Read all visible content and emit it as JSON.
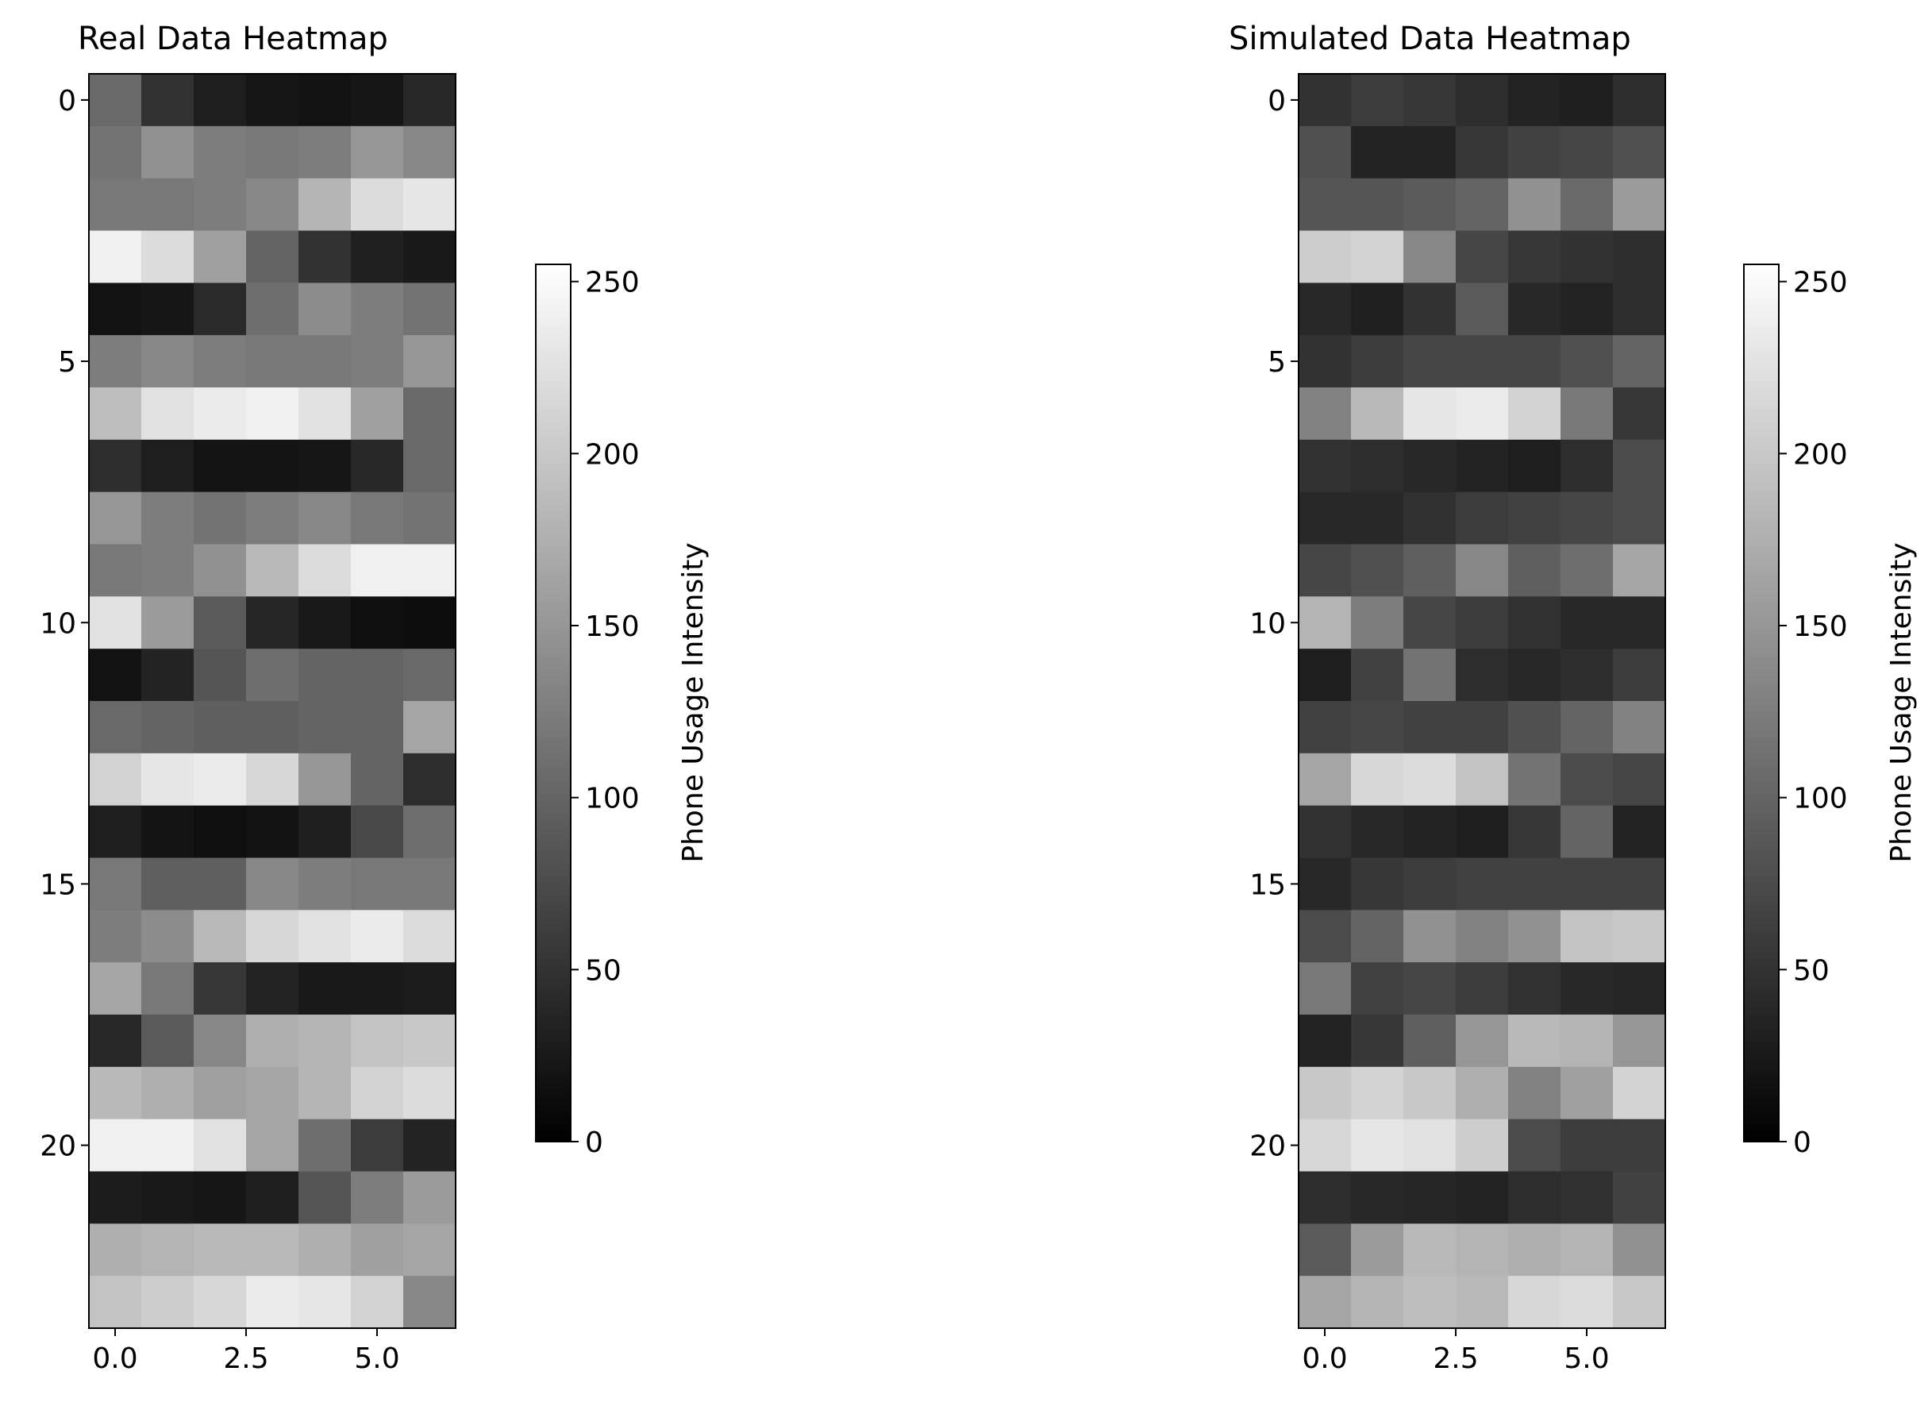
{
  "chart_data": [
    {
      "type": "heatmap",
      "title": "Real Data Heatmap",
      "colormap": "gray",
      "x_ticks": [
        "0.0",
        "2.5",
        "5.0"
      ],
      "y_ticks": [
        "0",
        "5",
        "10",
        "15",
        "20"
      ],
      "colorbar": {
        "label": "Phone Usage Intensity",
        "ticks": [
          "0",
          "50",
          "100",
          "150",
          "200",
          "250"
        ],
        "range": [
          0,
          255
        ]
      },
      "values": [
        [
          105,
          50,
          30,
          22,
          18,
          22,
          40
        ],
        [
          115,
          145,
          125,
          120,
          125,
          150,
          135
        ],
        [
          120,
          120,
          125,
          135,
          180,
          220,
          230
        ],
        [
          240,
          220,
          160,
          100,
          50,
          32,
          25
        ],
        [
          18,
          22,
          42,
          110,
          140,
          125,
          115
        ],
        [
          125,
          135,
          125,
          120,
          120,
          125,
          150
        ],
        [
          190,
          225,
          235,
          240,
          225,
          160,
          105
        ],
        [
          45,
          30,
          20,
          20,
          22,
          40,
          105
        ],
        [
          150,
          125,
          115,
          125,
          135,
          120,
          115
        ],
        [
          120,
          125,
          145,
          185,
          220,
          240,
          240
        ],
        [
          225,
          155,
          90,
          38,
          25,
          15,
          12
        ],
        [
          18,
          35,
          85,
          110,
          100,
          100,
          105
        ],
        [
          105,
          100,
          95,
          95,
          100,
          100,
          165
        ],
        [
          210,
          230,
          235,
          215,
          150,
          100,
          45
        ],
        [
          30,
          20,
          15,
          18,
          30,
          72,
          110
        ],
        [
          120,
          95,
          95,
          135,
          125,
          120,
          120
        ],
        [
          125,
          140,
          185,
          215,
          225,
          235,
          220
        ],
        [
          165,
          120,
          55,
          35,
          25,
          25,
          28
        ],
        [
          40,
          90,
          135,
          175,
          180,
          195,
          200
        ],
        [
          185,
          175,
          160,
          165,
          180,
          210,
          220
        ],
        [
          240,
          240,
          225,
          165,
          110,
          60,
          35
        ],
        [
          28,
          25,
          22,
          30,
          85,
          125,
          155
        ],
        [
          175,
          180,
          185,
          185,
          175,
          160,
          165
        ],
        [
          195,
          205,
          215,
          235,
          230,
          210,
          135
        ]
      ]
    },
    {
      "type": "heatmap",
      "title": "Simulated Data Heatmap",
      "colormap": "gray",
      "x_ticks": [
        "0.0",
        "2.5",
        "5.0"
      ],
      "y_ticks": [
        "0",
        "5",
        "10",
        "15",
        "20"
      ],
      "colorbar": {
        "label": "Phone Usage Intensity",
        "ticks": [
          "0",
          "50",
          "100",
          "150",
          "200",
          "250"
        ],
        "range": [
          0,
          255
        ]
      },
      "values": [
        [
          50,
          60,
          55,
          45,
          35,
          30,
          45
        ],
        [
          80,
          35,
          35,
          55,
          65,
          70,
          80
        ],
        [
          85,
          85,
          90,
          100,
          145,
          105,
          155
        ],
        [
          205,
          210,
          135,
          70,
          55,
          50,
          45
        ],
        [
          40,
          32,
          50,
          90,
          40,
          35,
          45
        ],
        [
          50,
          60,
          70,
          70,
          70,
          80,
          100
        ],
        [
          130,
          185,
          230,
          235,
          210,
          120,
          55
        ],
        [
          50,
          45,
          40,
          35,
          30,
          45,
          75
        ],
        [
          40,
          40,
          48,
          60,
          65,
          70,
          75
        ],
        [
          70,
          80,
          95,
          135,
          95,
          110,
          165
        ],
        [
          180,
          125,
          70,
          60,
          50,
          40,
          40
        ],
        [
          30,
          65,
          115,
          45,
          40,
          45,
          60
        ],
        [
          65,
          70,
          65,
          65,
          80,
          100,
          130
        ],
        [
          165,
          215,
          220,
          195,
          115,
          75,
          70
        ],
        [
          50,
          40,
          35,
          30,
          55,
          100,
          35
        ],
        [
          40,
          55,
          60,
          65,
          65,
          65,
          65
        ],
        [
          75,
          100,
          145,
          130,
          145,
          195,
          200
        ],
        [
          120,
          65,
          70,
          60,
          50,
          40,
          38
        ],
        [
          35,
          55,
          95,
          150,
          185,
          180,
          150
        ],
        [
          200,
          210,
          200,
          175,
          130,
          160,
          210
        ],
        [
          215,
          230,
          225,
          205,
          75,
          60,
          60
        ],
        [
          45,
          40,
          38,
          35,
          45,
          48,
          65
        ],
        [
          90,
          155,
          185,
          180,
          175,
          180,
          145
        ],
        [
          165,
          180,
          190,
          185,
          215,
          220,
          200
        ]
      ]
    }
  ]
}
